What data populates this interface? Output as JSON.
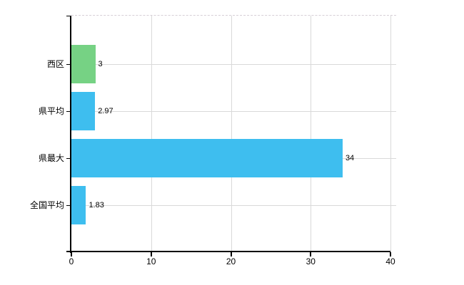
{
  "chart_data": {
    "type": "bar",
    "orientation": "horizontal",
    "title": "",
    "xlabel": "",
    "ylabel": "",
    "categories": [
      "西区",
      "県平均",
      "県最大",
      "全国平均"
    ],
    "values": [
      3,
      2.97,
      34,
      1.83
    ],
    "value_labels": [
      "3",
      "2.97",
      "34",
      "1.83"
    ],
    "bar_colors": [
      "#76d284",
      "#3ebeef",
      "#3ebeef",
      "#3ebeef"
    ],
    "xlim": [
      0,
      40
    ],
    "x_ticks": [
      0,
      10,
      20,
      30,
      40
    ],
    "x_tick_labels": [
      "0",
      "10",
      "20",
      "30",
      "40"
    ],
    "grid": "on",
    "legend": "none"
  },
  "colors": {
    "background": "#ffffff",
    "axis": "#000000",
    "grid": "#d9d9d9",
    "text": "#000000",
    "green_bar": "#76d284",
    "blue_bar": "#3ebeef"
  }
}
